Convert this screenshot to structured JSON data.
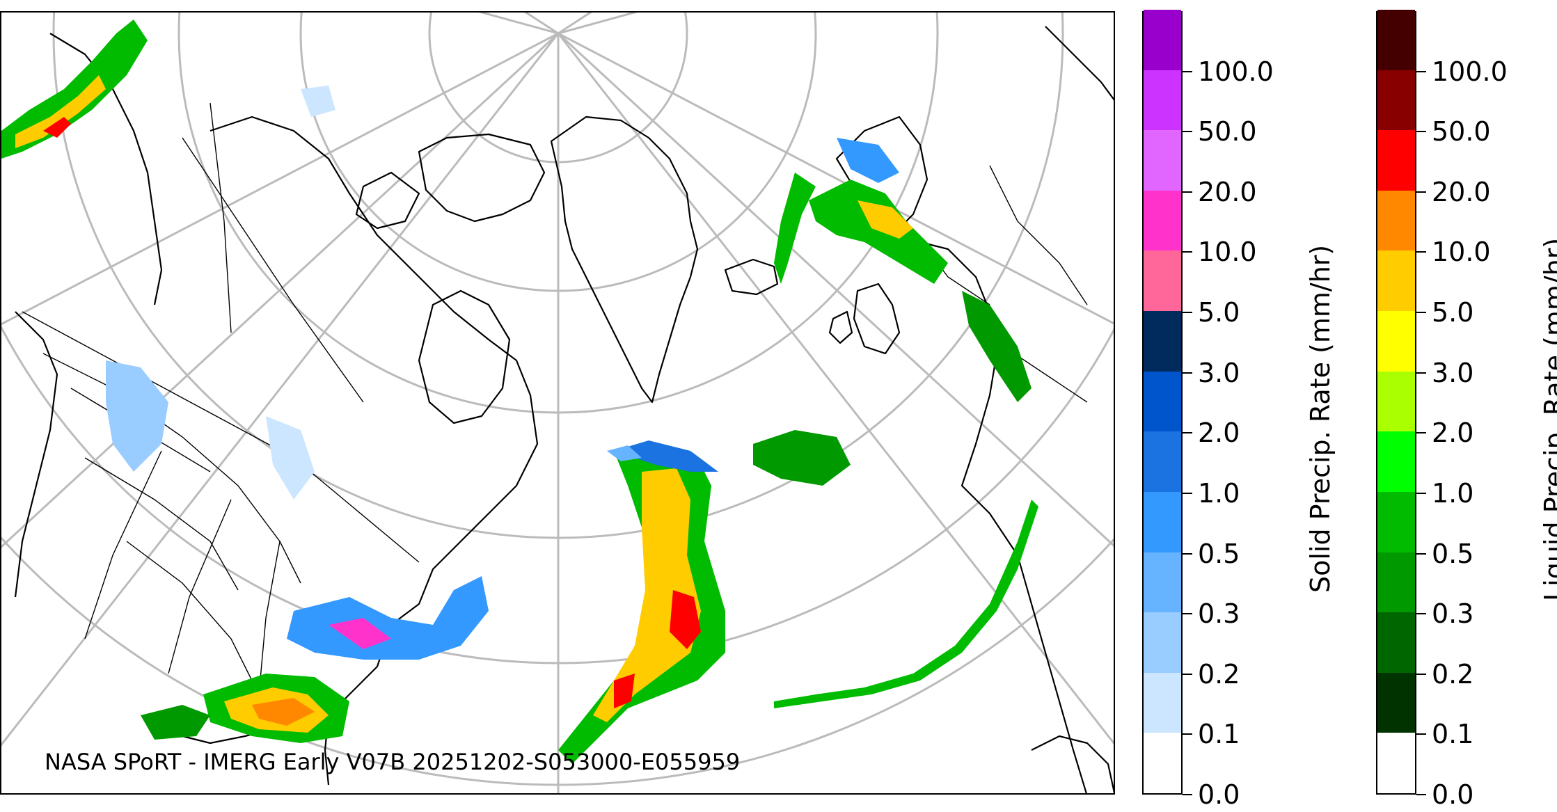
{
  "map": {
    "credit": "NASA SPoRT - IMERG Early V07B 20251202-S053000-E055959"
  },
  "solid_colorbar": {
    "title": "Solid Precip. Rate (mm/hr)",
    "ticks": [
      "0.0",
      "0.1",
      "0.2",
      "0.3",
      "0.5",
      "1.0",
      "2.0",
      "3.0",
      "5.0",
      "10.0",
      "20.0",
      "50.0",
      "100.0"
    ],
    "colors": [
      "#ffffff",
      "#cce6ff",
      "#99ccff",
      "#66b3ff",
      "#3399ff",
      "#1a73e0",
      "#0055cc",
      "#002b5c",
      "#ff6699",
      "#ff33cc",
      "#e066ff",
      "#cc33ff",
      "#9900cc"
    ]
  },
  "liquid_colorbar": {
    "title": "Liquid Precip. Rate (mm/hr)",
    "ticks": [
      "0.0",
      "0.1",
      "0.2",
      "0.3",
      "0.5",
      "1.0",
      "2.0",
      "3.0",
      "5.0",
      "10.0",
      "20.0",
      "50.0",
      "100.0"
    ],
    "colors": [
      "#ffffff",
      "#003300",
      "#006600",
      "#009900",
      "#00bb00",
      "#00ff00",
      "#aaff00",
      "#ffff00",
      "#ffcc00",
      "#ff8800",
      "#ff0000",
      "#880000",
      "#440000"
    ]
  }
}
